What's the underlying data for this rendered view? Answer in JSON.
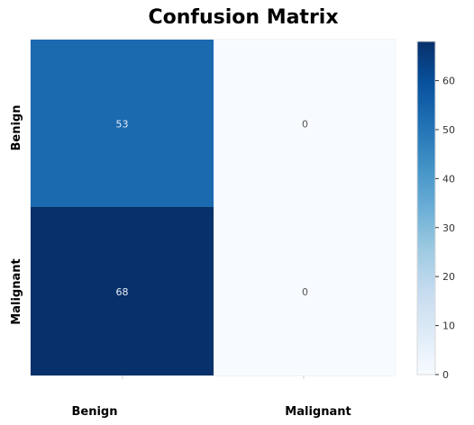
{
  "chart_data": {
    "type": "heatmap",
    "title": "Confusion Matrix",
    "row_labels": [
      "Benign",
      "Malignant"
    ],
    "col_labels": [
      "Benign",
      "Malignant"
    ],
    "values": [
      [
        53,
        0
      ],
      [
        68,
        0
      ]
    ],
    "colorbar": {
      "min": 0,
      "max": 68,
      "ticks": [
        0,
        10,
        20,
        30,
        40,
        50,
        60
      ]
    },
    "colormap": "Blues",
    "colors": {
      "low": "#f7fbff",
      "high": "#08306b"
    }
  }
}
